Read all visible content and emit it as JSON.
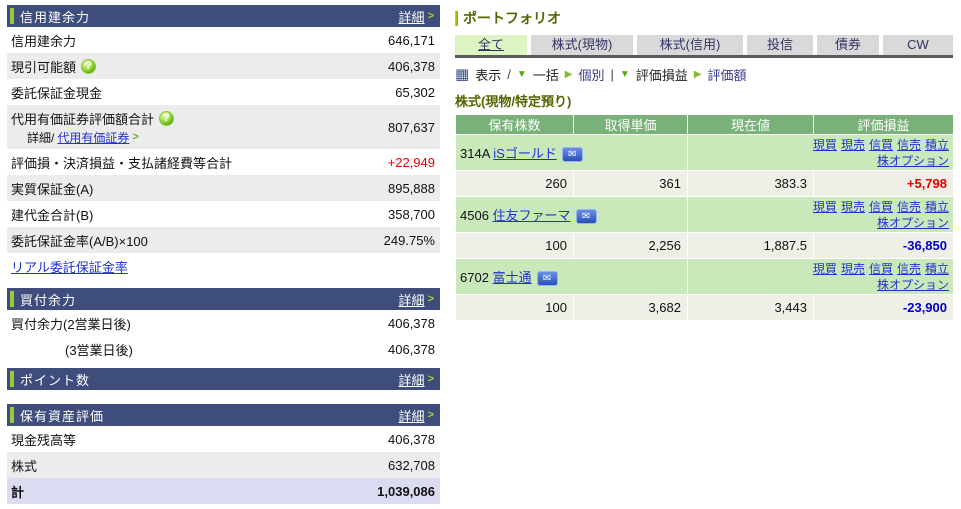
{
  "left_panel": {
    "sections": [
      {
        "title": "信用建余力",
        "detail_label": "詳細",
        "detail_arrow": ">",
        "rows": [
          {
            "label": "信用建余力",
            "value": "646,171"
          },
          {
            "label": "現引可能額",
            "value": "406,378",
            "help": true,
            "shaded": true
          },
          {
            "label": "委託保証金現金",
            "value": "65,302"
          },
          {
            "label": "代用有価証券評価額合計",
            "value": "807,637",
            "help": true,
            "shaded": true,
            "sub_prefix": "詳細/",
            "sub_link": "代用有価証券",
            "sub_arrow": ">"
          },
          {
            "label": "評価損・決済損益・支払諸経費等合計",
            "value": "+22,949",
            "value_class": "red"
          },
          {
            "label": "実質保証金(A)",
            "value": "895,888",
            "shaded": true
          },
          {
            "label": "建代金合計(B)",
            "value": "358,700"
          },
          {
            "label": "委託保証金率(A/B)×100",
            "value": "249.75%",
            "shaded": true
          },
          {
            "link_row": "リアル委託保証金率"
          }
        ]
      },
      {
        "title": "買付余力",
        "detail_label": "詳細",
        "detail_arrow": ">",
        "rows": [
          {
            "label": "買付余力(2営業日後)",
            "value": "406,378"
          },
          {
            "label": "(3営業日後)",
            "value": "406,378",
            "indent": true
          }
        ]
      },
      {
        "title": "ポイント数",
        "detail_label": "詳細",
        "detail_arrow": ">",
        "rows": []
      },
      {
        "title": "保有資産評価",
        "detail_label": "詳細",
        "detail_arrow": ">",
        "rows": [
          {
            "label": "現金残高等",
            "value": "406,378"
          },
          {
            "label": "株式",
            "value": "632,708",
            "shaded": true
          },
          {
            "label": "計",
            "value": "1,039,086",
            "total": true
          }
        ]
      }
    ]
  },
  "portfolio": {
    "title": "ポートフォリオ",
    "tabs": [
      {
        "label": "全て",
        "active": true
      },
      {
        "label": "株式(現物)",
        "active": false
      },
      {
        "label": "株式(信用)",
        "active": false
      },
      {
        "label": "投信",
        "active": false
      },
      {
        "label": "債券",
        "active": false
      },
      {
        "label": "CW",
        "active": false
      }
    ],
    "toolbar": {
      "view_label": "表示",
      "slash": "/",
      "pipe": "|",
      "groups": [
        {
          "selected": "一括",
          "link": "個別"
        },
        {
          "selected": "評価損益",
          "link": "評価額"
        }
      ]
    },
    "subtitle": "株式(現物/特定預り)",
    "table": {
      "headers": [
        "保有株数",
        "取得単価",
        "現在値",
        "評価損益"
      ],
      "trade_links": [
        "現買",
        "現売",
        "信買",
        "信売",
        "積立"
      ],
      "trade_links_line2": [
        "株オプション"
      ],
      "rows": [
        {
          "code": "314A",
          "name": "iSゴールド",
          "shares": "260",
          "avg_price": "361",
          "current": "383.3",
          "pl": "+5,798",
          "pl_class": "red"
        },
        {
          "code": "4506",
          "name": "住友ファーマ",
          "shares": "100",
          "avg_price": "2,256",
          "current": "1,887.5",
          "pl": "-36,850",
          "pl_class": "blue"
        },
        {
          "code": "6702",
          "name": "富士通",
          "shares": "100",
          "avg_price": "3,682",
          "current": "3,443",
          "pl": "-23,900",
          "pl_class": "blue"
        }
      ]
    }
  },
  "colors": {
    "header_navy": "#3e4d7c",
    "accent_green": "#99cc33",
    "table_header_green": "#79b279",
    "name_row_green": "#c9e9bb",
    "data_row_gray": "#f0efe7",
    "profit_red": "#e60000",
    "loss_blue": "#0000cc",
    "link_blue": "#2233cc",
    "total_row_lavender": "#dbdbf2",
    "olive_title": "#556600",
    "tab_active_green": "#ddf5c2"
  }
}
